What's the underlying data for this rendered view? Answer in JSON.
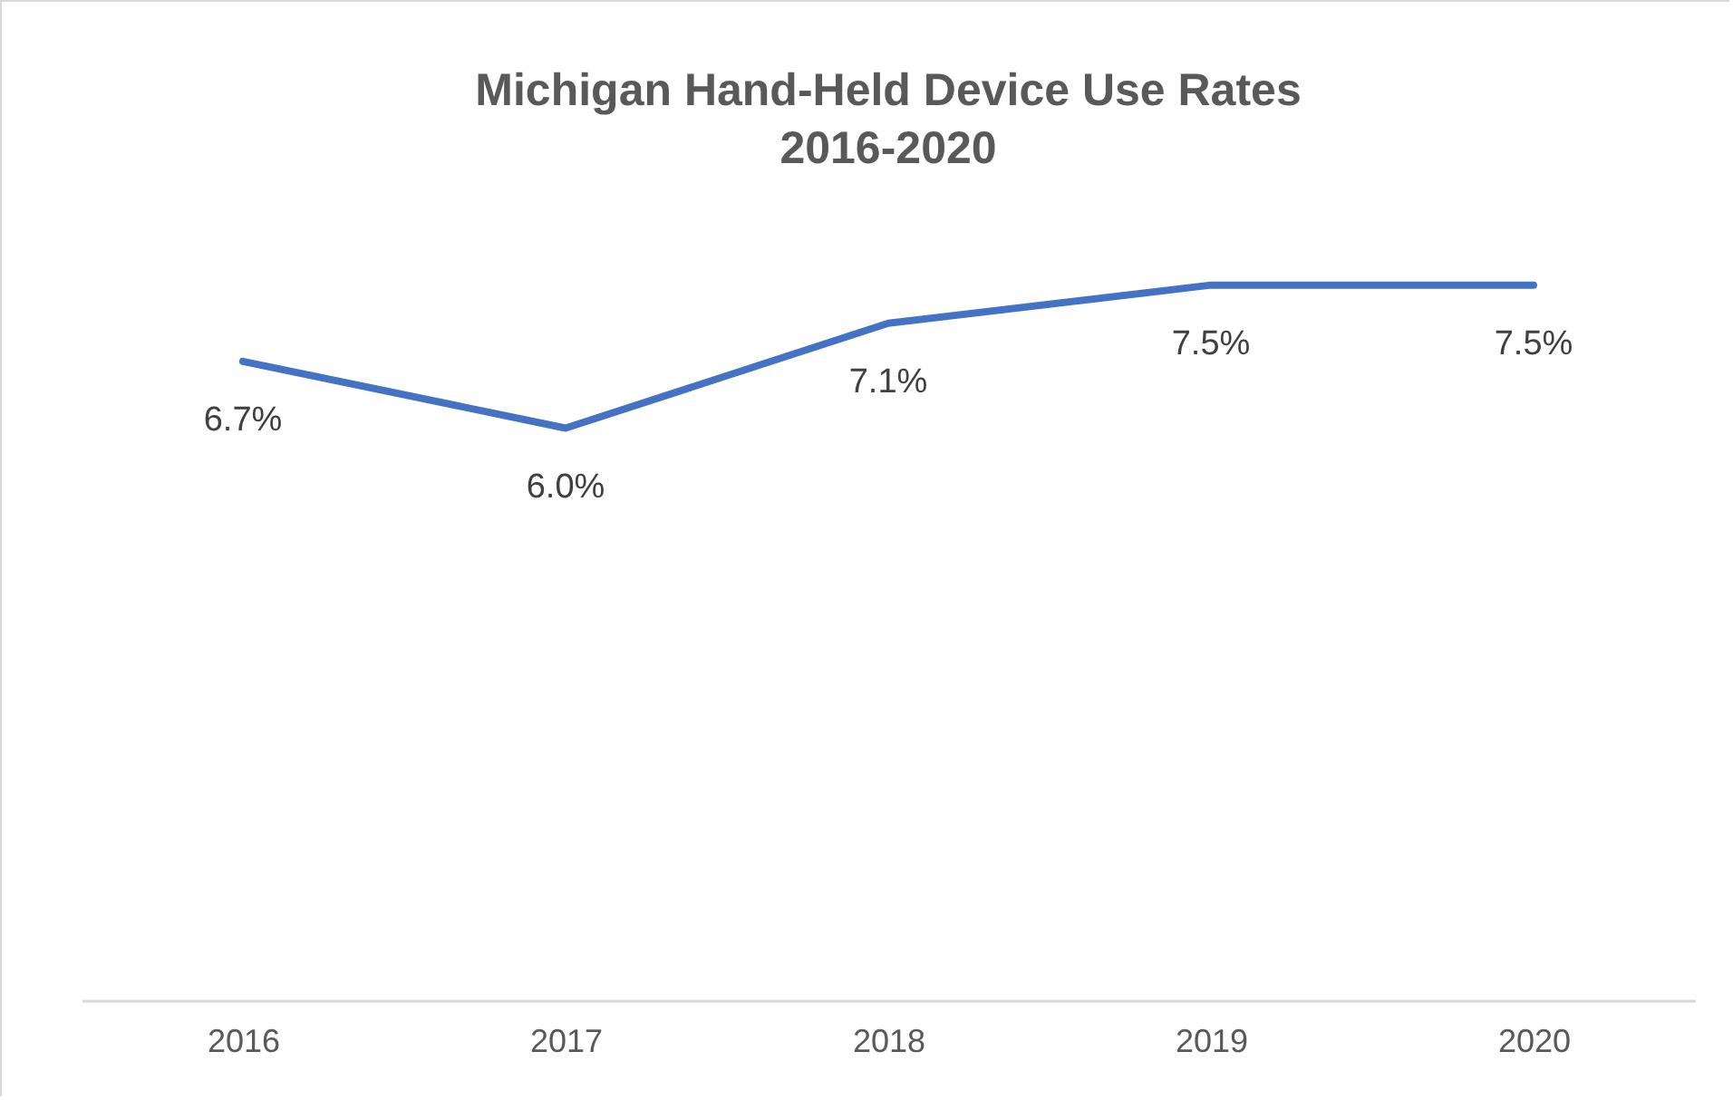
{
  "chart_data": {
    "type": "line",
    "title": "Michigan Hand-Held Device Use Rates\n2016-2020",
    "categories": [
      "2016",
      "2017",
      "2018",
      "2019",
      "2020"
    ],
    "series": [
      {
        "color": "#4472c4",
        "values": [
          6.7,
          6.0,
          7.1,
          7.5,
          7.5
        ],
        "value_labels": [
          "6.7%",
          "6.0%",
          "7.1%",
          "7.5%",
          "7.5%"
        ]
      }
    ],
    "tick_labels": "x"
  }
}
